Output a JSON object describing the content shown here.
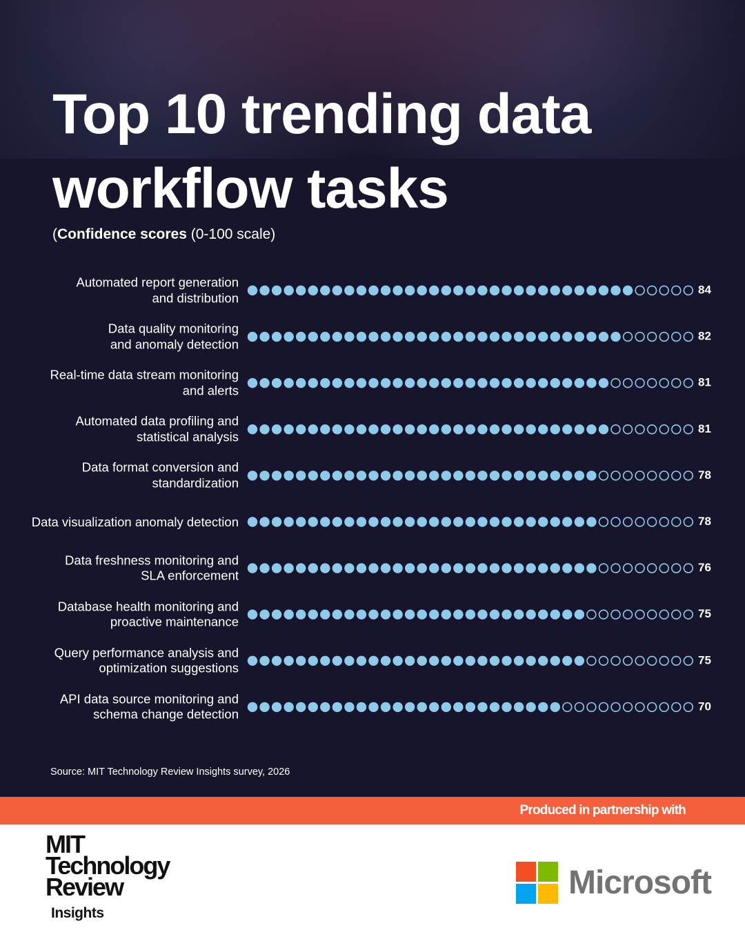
{
  "chart_data": {
    "type": "dotplot",
    "title": "Top 10 trending data\nworkflow tasks",
    "subtitle": [
      "(",
      "Confidence scores",
      " (0-100 scale)"
    ],
    "categories": [
      "Automated report generation\nand distribution",
      "Data quality monitoring\nand anomaly detection",
      "Real-time data stream monitoring\nand alerts",
      "Automated data profiling and\nstatistical analysis",
      "Data format conversion and\nstandardization",
      "Data visualization anomaly detection",
      "Data freshness monitoring and\nSLA enforcement",
      "Database health monitoring and\nproactive maintenance",
      "Query performance analysis and\noptimization suggestions",
      "API data source monitoring and\nschema change detection"
    ],
    "values": [
      84,
      82,
      81,
      81,
      78,
      78,
      76,
      75,
      75,
      70
    ],
    "color": "#8ecbea",
    "xlim": [
      0,
      100
    ]
  },
  "source": "Source: MIT Technology Review Insights survey, 2026",
  "partner_note": "Produced in partnership with",
  "publisher": {
    "name": "MIT\nTechnology\nReview",
    "unit": "Insights"
  },
  "partner": "Microsoft"
}
